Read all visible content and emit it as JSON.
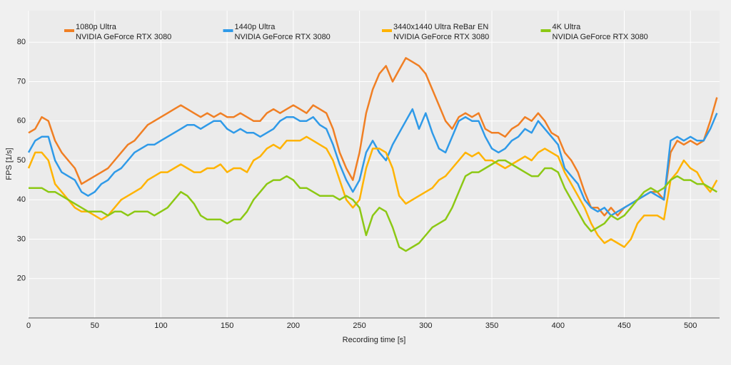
{
  "chart_data": {
    "type": "line",
    "xlabel": "Recording time [s]",
    "ylabel": "FPS [1/s]",
    "xlim": [
      0,
      522
    ],
    "ylim": [
      10,
      88
    ],
    "xticks": [
      0,
      50,
      100,
      150,
      200,
      250,
      300,
      350,
      400,
      450,
      500
    ],
    "yticks": [
      20,
      30,
      40,
      50,
      60,
      70,
      80
    ],
    "grid": true,
    "x": [
      0,
      5,
      10,
      15,
      20,
      25,
      30,
      35,
      40,
      45,
      50,
      55,
      60,
      65,
      70,
      75,
      80,
      85,
      90,
      95,
      100,
      105,
      110,
      115,
      120,
      125,
      130,
      135,
      140,
      145,
      150,
      155,
      160,
      165,
      170,
      175,
      180,
      185,
      190,
      195,
      200,
      205,
      210,
      215,
      220,
      225,
      230,
      235,
      240,
      245,
      250,
      255,
      260,
      265,
      270,
      275,
      280,
      285,
      290,
      295,
      300,
      305,
      310,
      315,
      320,
      325,
      330,
      335,
      340,
      345,
      350,
      355,
      360,
      365,
      370,
      375,
      380,
      385,
      390,
      395,
      400,
      405,
      410,
      415,
      420,
      425,
      430,
      435,
      440,
      445,
      450,
      455,
      460,
      465,
      470,
      475,
      480,
      485,
      490,
      495,
      500,
      505,
      510,
      515,
      520
    ],
    "series": [
      {
        "name": "1080p Ultra",
        "gpu": "NVIDIA GeForce RTX 3080",
        "color": "#f07f24",
        "values": [
          57,
          58,
          61,
          60,
          55,
          52,
          50,
          48,
          44,
          45,
          46,
          47,
          48,
          50,
          52,
          54,
          55,
          57,
          59,
          60,
          61,
          62,
          63,
          64,
          63,
          62,
          61,
          62,
          61,
          62,
          61,
          61,
          62,
          61,
          60,
          60,
          62,
          63,
          62,
          63,
          64,
          63,
          62,
          64,
          63,
          62,
          58,
          52,
          48,
          45,
          52,
          62,
          68,
          72,
          74,
          70,
          73,
          76,
          75,
          74,
          72,
          68,
          64,
          60,
          58,
          61,
          62,
          61,
          62,
          58,
          57,
          57,
          56,
          58,
          59,
          61,
          60,
          62,
          60,
          57,
          56,
          52,
          50,
          47,
          42,
          38,
          38,
          36,
          38,
          36,
          38,
          39,
          40,
          41,
          42,
          42,
          40,
          52,
          55,
          54,
          55,
          54,
          55,
          60,
          66
        ]
      },
      {
        "name": "1440p Ultra",
        "gpu": "NVIDIA GeForce RTX 3080",
        "color": "#2f9ae8",
        "values": [
          52,
          55,
          56,
          56,
          50,
          47,
          46,
          45,
          42,
          41,
          42,
          44,
          45,
          47,
          48,
          50,
          52,
          53,
          54,
          54,
          55,
          56,
          57,
          58,
          59,
          59,
          58,
          59,
          60,
          60,
          58,
          57,
          58,
          57,
          57,
          56,
          57,
          58,
          60,
          61,
          61,
          60,
          60,
          61,
          59,
          58,
          54,
          49,
          45,
          42,
          45,
          52,
          55,
          52,
          50,
          54,
          57,
          60,
          63,
          58,
          62,
          57,
          53,
          52,
          56,
          60,
          61,
          60,
          60,
          56,
          53,
          52,
          53,
          55,
          56,
          58,
          57,
          60,
          58,
          56,
          54,
          48,
          46,
          44,
          40,
          38,
          37,
          38,
          36,
          37,
          38,
          39,
          40,
          41,
          42,
          41,
          40,
          55,
          56,
          55,
          56,
          55,
          55,
          58,
          62
        ]
      },
      {
        "name": "3440x1440 Ultra ReBar EN",
        "gpu": "NVIDIA GeForce RTX 3080",
        "color": "#ffb300",
        "values": [
          48,
          52,
          52,
          50,
          44,
          42,
          40,
          38,
          37,
          37,
          36,
          35,
          36,
          38,
          40,
          41,
          42,
          43,
          45,
          46,
          47,
          47,
          48,
          49,
          48,
          47,
          47,
          48,
          48,
          49,
          47,
          48,
          48,
          47,
          50,
          51,
          53,
          54,
          53,
          55,
          55,
          55,
          56,
          55,
          54,
          53,
          50,
          45,
          40,
          38,
          40,
          48,
          53,
          53,
          52,
          48,
          41,
          39,
          40,
          41,
          42,
          43,
          45,
          46,
          48,
          50,
          52,
          51,
          52,
          50,
          50,
          49,
          48,
          49,
          50,
          51,
          50,
          52,
          53,
          52,
          51,
          47,
          44,
          41,
          38,
          34,
          31,
          29,
          30,
          29,
          28,
          30,
          34,
          36,
          36,
          36,
          35,
          45,
          47,
          50,
          48,
          47,
          44,
          42,
          45
        ]
      },
      {
        "name": "4K Ultra",
        "gpu": "NVIDIA GeForce RTX 3080",
        "color": "#8cc814",
        "values": [
          43,
          43,
          43,
          42,
          42,
          41,
          40,
          39,
          38,
          37,
          37,
          37,
          36,
          37,
          37,
          36,
          37,
          37,
          37,
          36,
          37,
          38,
          40,
          42,
          41,
          39,
          36,
          35,
          35,
          35,
          34,
          35,
          35,
          37,
          40,
          42,
          44,
          45,
          45,
          46,
          45,
          43,
          43,
          42,
          41,
          41,
          41,
          40,
          41,
          40,
          38,
          31,
          36,
          38,
          37,
          33,
          28,
          27,
          28,
          29,
          31,
          33,
          34,
          35,
          38,
          42,
          46,
          47,
          47,
          48,
          49,
          50,
          50,
          49,
          48,
          47,
          46,
          46,
          48,
          48,
          47,
          43,
          40,
          37,
          34,
          32,
          33,
          34,
          36,
          35,
          36,
          38,
          40,
          42,
          43,
          42,
          43,
          45,
          46,
          45,
          45,
          44,
          44,
          43,
          42
        ]
      }
    ]
  }
}
